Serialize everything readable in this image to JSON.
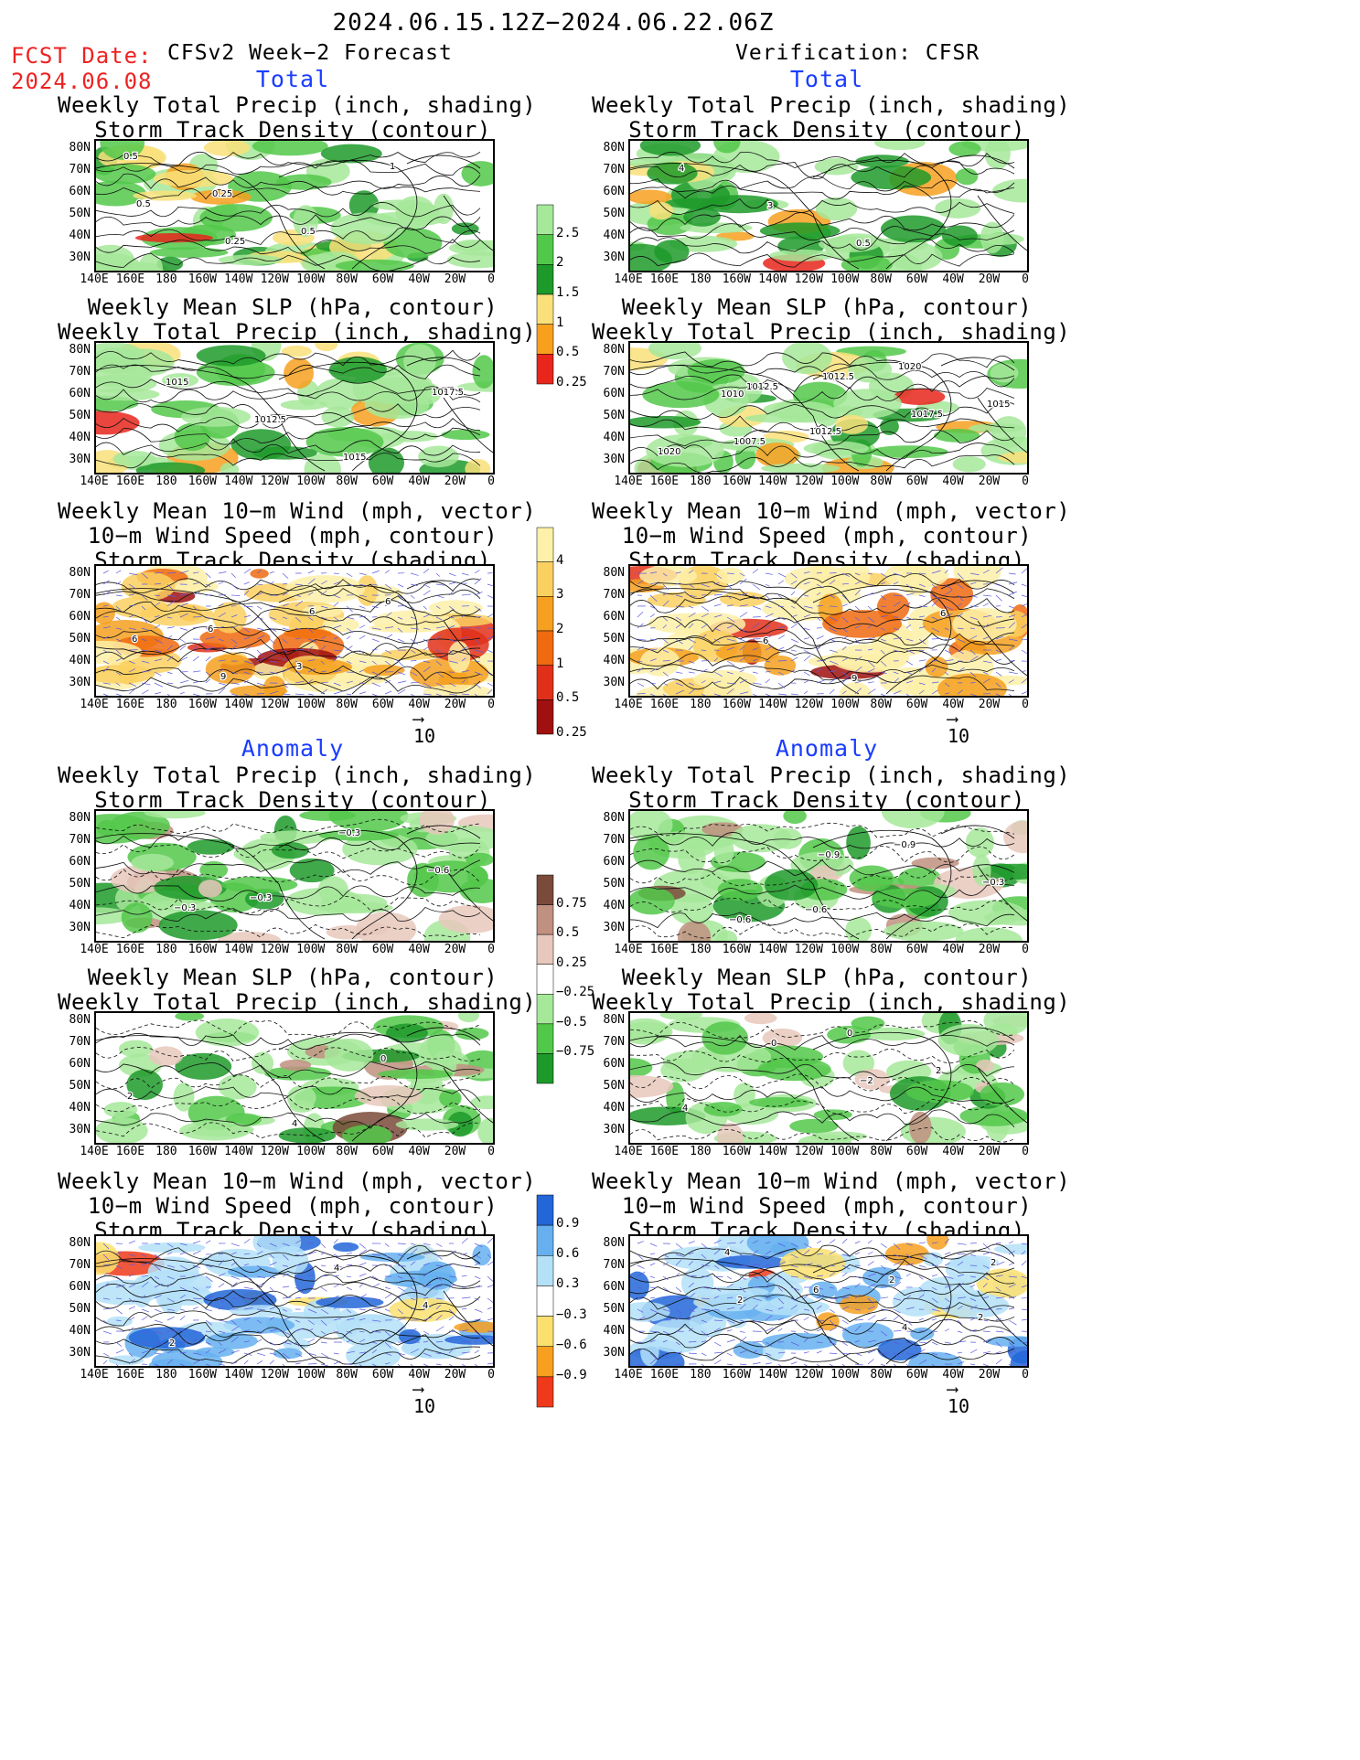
{
  "header": {
    "period": "2024.06.15.12Z−2024.06.22.06Z",
    "fcst_label": "FCST Date:",
    "fcst_date": "2024.06.08",
    "left_title": "CFSv2 Week−2 Forecast",
    "right_title": "Verification: CFSR",
    "total_label": "Total",
    "anomaly_label": "Anomaly"
  },
  "panel_titles": {
    "precip_storm": [
      "Weekly Total Precip (inch, shading)",
      "Storm Track Density (contour)"
    ],
    "slp_precip": [
      "Weekly Mean SLP (hPa, contour)",
      "Weekly Total Precip (inch, shading)"
    ],
    "wind_storm": [
      "Weekly Mean 10−m Wind (mph, vector)",
      "10−m Wind Speed (mph, contour)",
      "Storm Track Density (shading)"
    ]
  },
  "axes": {
    "lat_labels": [
      "80N",
      "70N",
      "60N",
      "50N",
      "40N",
      "30N"
    ],
    "lon_labels": [
      "140E",
      "160E",
      "180",
      "160W",
      "140W",
      "120W",
      "100W",
      "80W",
      "60W",
      "40W",
      "20W",
      "0"
    ]
  },
  "vector_ref": "10",
  "colorbars": {
    "precip_total": {
      "labels": [
        "2.5",
        "2",
        "1.5",
        "1",
        "0.5",
        "0.25"
      ],
      "colors": [
        "#e8261c",
        "#f7a01e",
        "#f9e07a",
        "#1e9a2a",
        "#52c84a",
        "#a6e89a"
      ]
    },
    "storm_total": {
      "labels": [
        "4",
        "3",
        "2",
        "1",
        "0.5",
        "0.25"
      ],
      "colors": [
        "#a01010",
        "#e0301a",
        "#f06a10",
        "#f5a020",
        "#fad060",
        "#fdf0a8"
      ]
    },
    "precip_anom": {
      "labels": [
        "0.75",
        "0.5",
        "0.25",
        "−0.25",
        "−0.5",
        "−0.75"
      ],
      "colors": [
        "#1e9a2a",
        "#52c84a",
        "#a6e89a",
        "#ffffff",
        "#e8c8bc",
        "#c09080",
        "#7a4a3a"
      ]
    },
    "storm_anom": {
      "labels": [
        "0.9",
        "0.6",
        "0.3",
        "−0.3",
        "−0.6",
        "−0.9"
      ],
      "colors": [
        "#ee3a1a",
        "#f7a020",
        "#fbe070",
        "#ffffff",
        "#b4e0f8",
        "#66b0f0",
        "#2266d8"
      ]
    }
  },
  "panel_contour_labels": {
    "L1": [
      "0.5",
      "0.25",
      "0.5",
      "1",
      "0.5",
      "0.25"
    ],
    "R1": [
      "4",
      "3",
      "0.5"
    ],
    "L2": [
      "1015",
      "1012.5",
      "1015",
      "1017.5"
    ],
    "R2": [
      "1010",
      "1012.5",
      "1020",
      "1015",
      "1007.5",
      "1012.5",
      "1017.5",
      "1020",
      "1012.5"
    ],
    "L3": [
      "6",
      "3",
      "6",
      "6",
      "9",
      "6"
    ],
    "R3": [
      "6",
      "9",
      "6"
    ],
    "L4": [
      "−0.3",
      "−0.3",
      "−0.6",
      "−0.3"
    ],
    "R4": [
      "−0.6",
      "−0.9",
      "−0.3",
      "−0.6",
      "−0.9"
    ],
    "L5": [
      "4",
      "0",
      "2"
    ],
    "R5": [
      "0",
      "2",
      "4",
      "0",
      "−2"
    ],
    "L6": [
      "4",
      "4",
      "2"
    ],
    "R6": [
      "2",
      "2",
      "4",
      "6",
      "4",
      "2",
      "2"
    ]
  }
}
